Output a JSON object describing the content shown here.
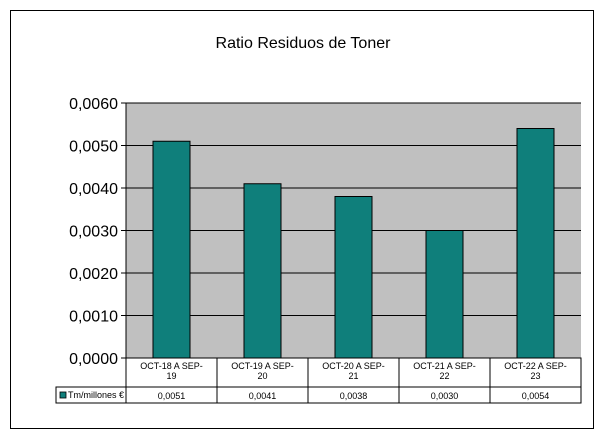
{
  "chart_data": {
    "type": "bar",
    "title": "Ratio Residuos de Toner",
    "categories": [
      [
        "OCT-18 A SEP-",
        "19"
      ],
      [
        "OCT-19 A SEP-",
        "20"
      ],
      [
        "OCT-20 A SEP-",
        "21"
      ],
      [
        "OCT-21 A SEP-",
        "22"
      ],
      [
        "OCT-22 A SEP-",
        "23"
      ]
    ],
    "series": [
      {
        "name": "Tm/millones €",
        "values": [
          0.0051,
          0.0041,
          0.0038,
          0.003,
          0.0054
        ]
      }
    ],
    "table_values": [
      "0,0051",
      "0,0041",
      "0,0038",
      "0,0030",
      "0,0054"
    ],
    "ylim": [
      0,
      0.006
    ],
    "yticks": [
      "0,0000",
      "0,0010",
      "0,0020",
      "0,0030",
      "0,0040",
      "0,0050",
      "0,0060"
    ],
    "grid": true,
    "legend": "data-table",
    "colors": {
      "bar": "#0f7f7b",
      "plot_bg": "#c0c0c0",
      "grid": "#000000"
    }
  }
}
